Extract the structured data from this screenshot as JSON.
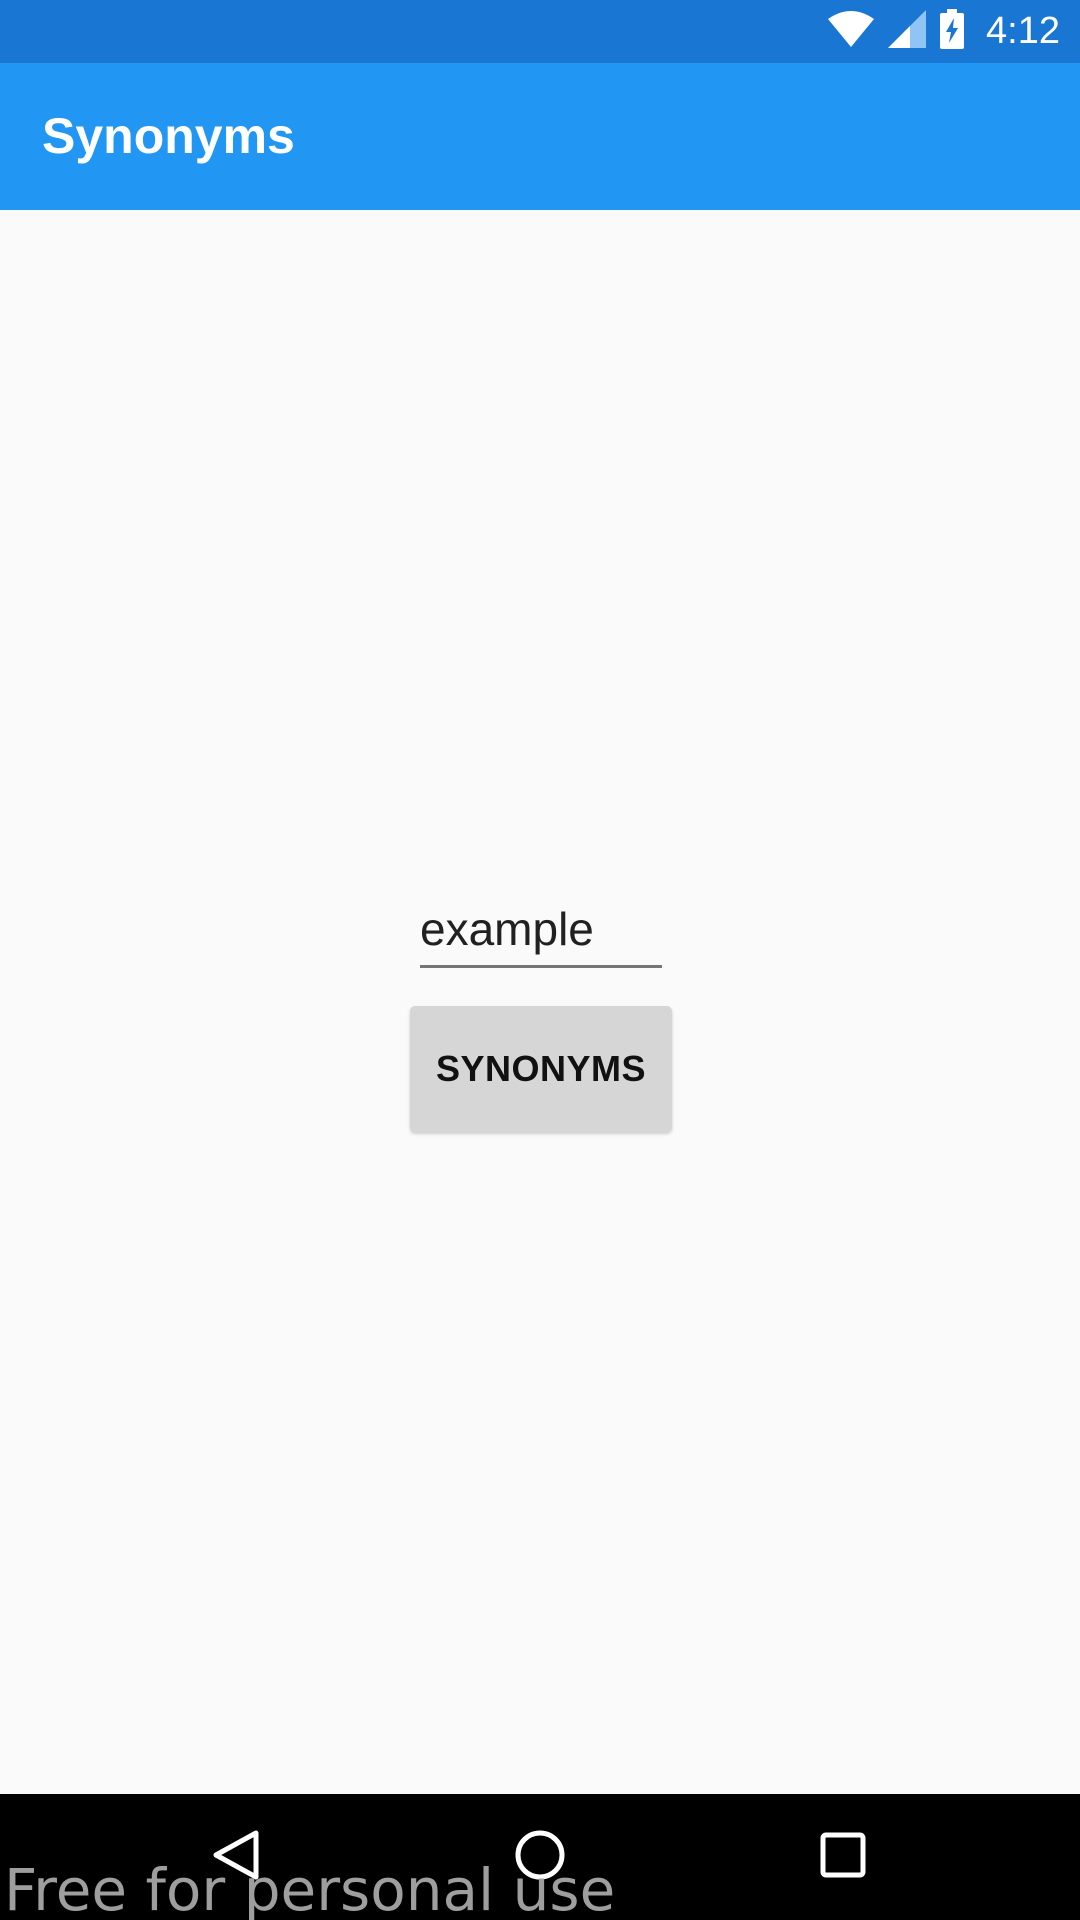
{
  "status_bar": {
    "time": "4:12",
    "icons": [
      "wifi-icon",
      "signal-icon",
      "battery-charging-icon"
    ],
    "color": "#1976d2"
  },
  "app_bar": {
    "title": "Synonyms",
    "color": "#2196f3"
  },
  "main": {
    "input": {
      "value": "example",
      "placeholder": ""
    },
    "button_label": "SYNONYMS"
  },
  "nav_bar": {
    "icons": [
      "back-icon",
      "home-icon",
      "recents-icon"
    ]
  },
  "watermark": "Free for personal use"
}
